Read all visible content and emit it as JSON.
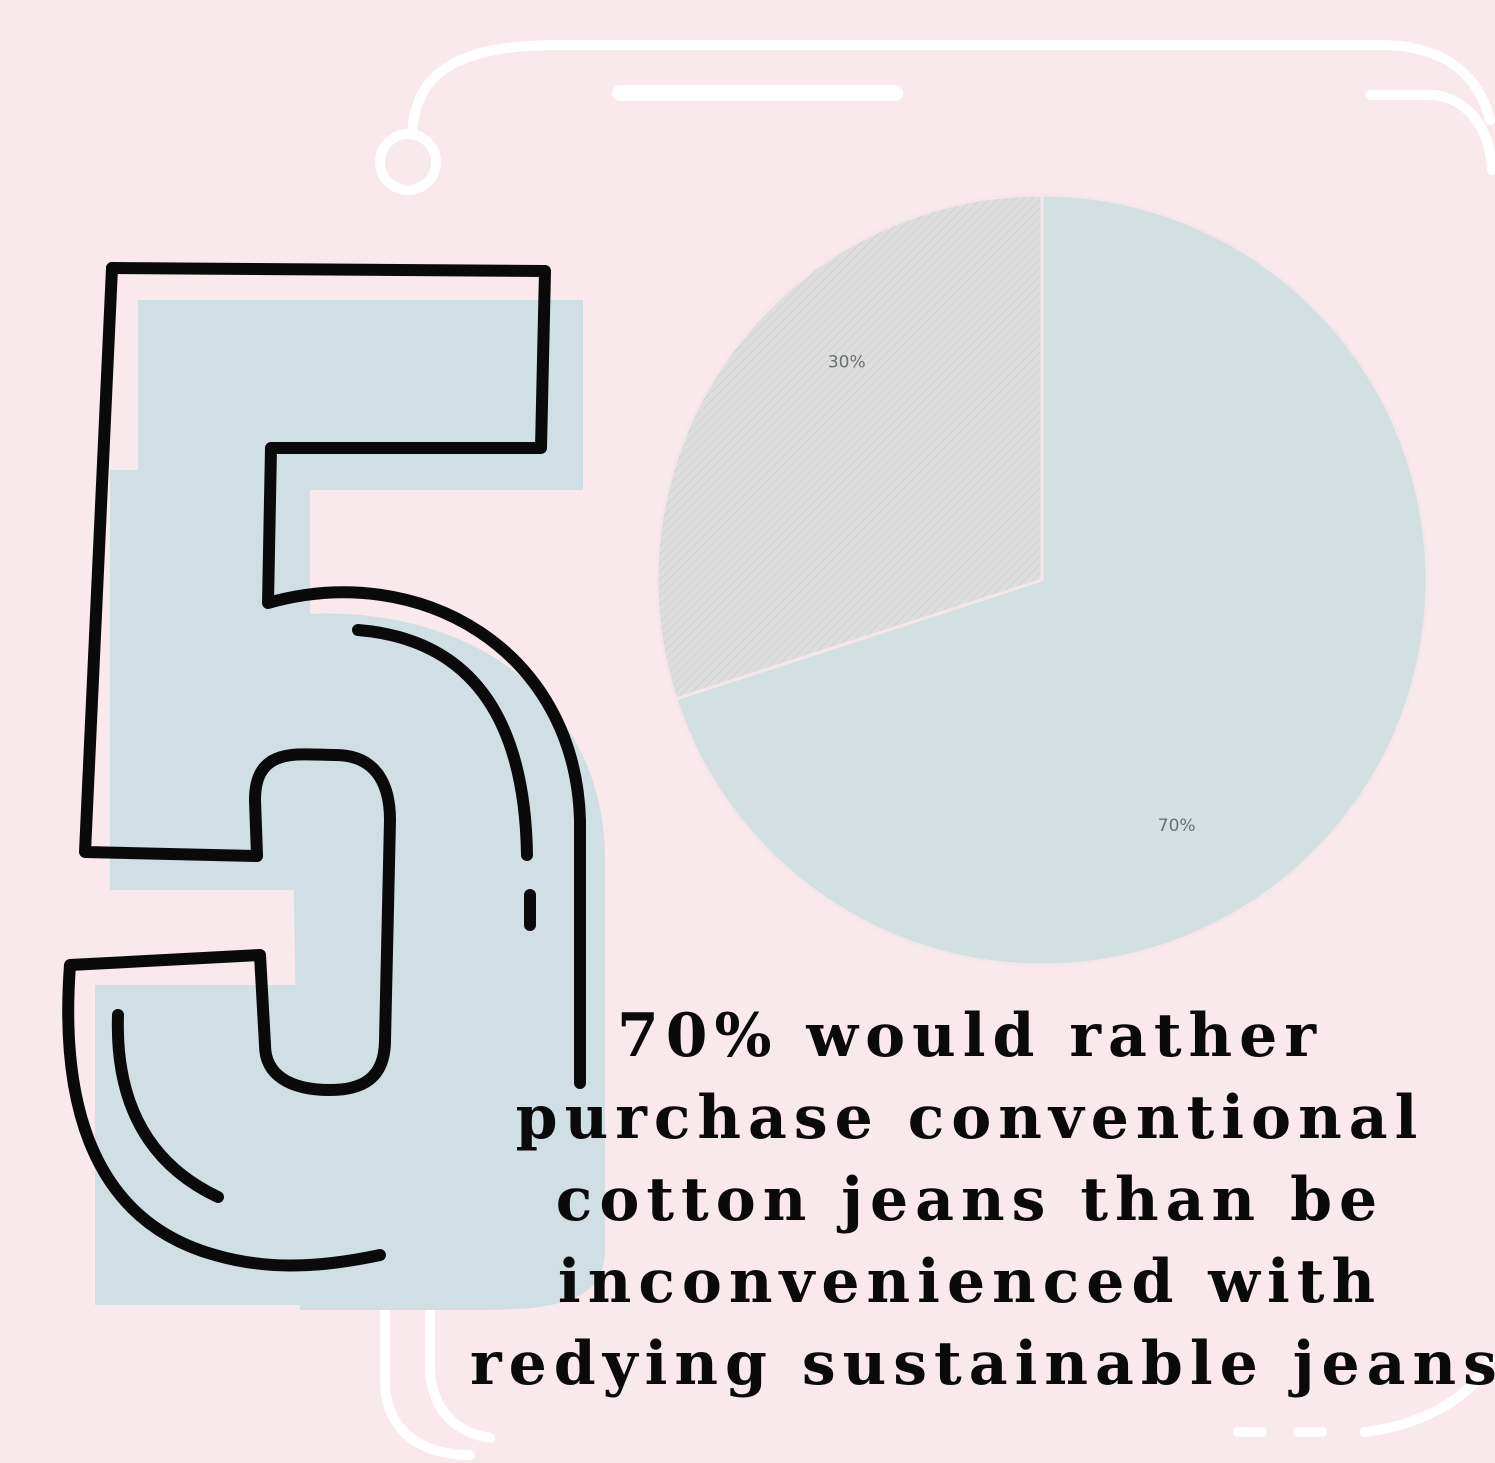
{
  "headline": {
    "number": "5",
    "lines": [
      "70% would rather",
      "purchase conventional",
      "cotton jeans than be",
      "inconvenienced with",
      "redying sustainable jeans."
    ]
  },
  "colors": {
    "background": "#f9e8ec",
    "digit_fill": "#d0dfe3",
    "slice_major": "#d3e0e2",
    "slice_minor": "#dedede",
    "frame": "#ffffff",
    "ink": "#0a0a0a"
  },
  "chart_data": {
    "type": "pie",
    "title": "",
    "slices": [
      {
        "label": "70%",
        "value": 70,
        "color": "#d3e0e2"
      },
      {
        "label": "30%",
        "value": 30,
        "color": "#dedede"
      }
    ],
    "start_angle_deg": 0,
    "direction": "clockwise",
    "legend": "none"
  }
}
